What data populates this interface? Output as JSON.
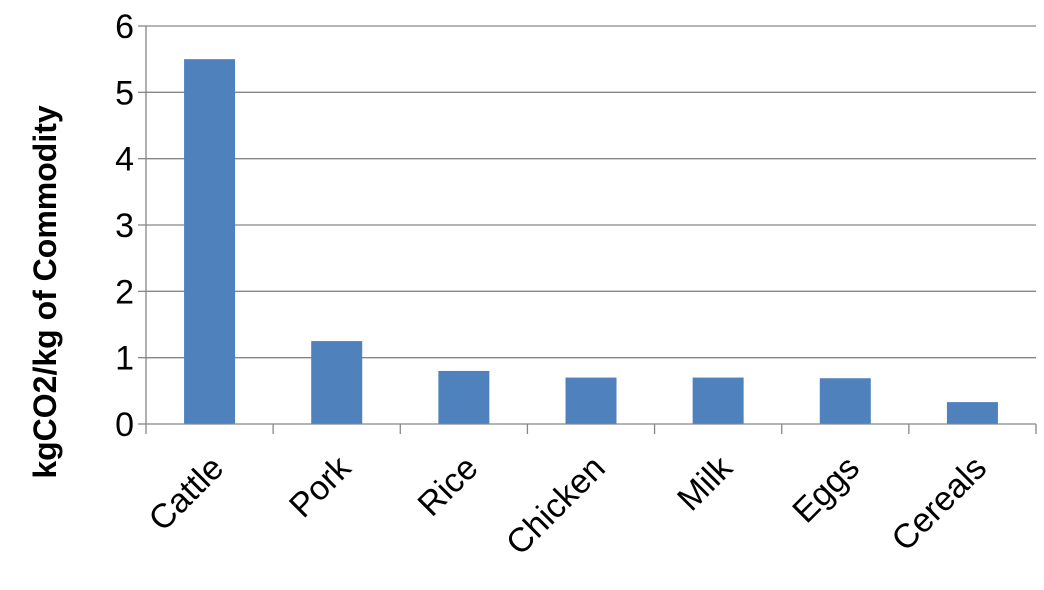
{
  "chart_data": {
    "type": "bar",
    "title": "",
    "xlabel": "",
    "ylabel": "kgCO2/kg of Commodity",
    "categories": [
      "Cattle",
      "Pork",
      "Rice",
      "Chicken",
      "Milk",
      "Eggs",
      "Cereals"
    ],
    "series": [
      {
        "values": [
          5.5,
          1.25,
          0.8,
          0.7,
          0.7,
          0.69,
          0.33
        ]
      }
    ],
    "ylim": [
      0,
      6
    ],
    "yticks": [
      "0",
      "1",
      "2",
      "3",
      "4",
      "5",
      "6"
    ],
    "grid": true,
    "legend": "none",
    "bar_color": "#4f81bd"
  }
}
